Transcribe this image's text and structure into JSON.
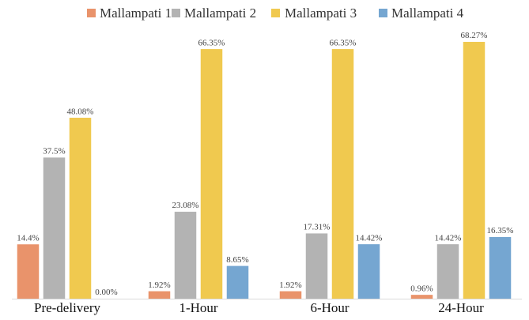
{
  "chart_data": {
    "type": "bar",
    "categories": [
      "Pre-delivery",
      "1-Hour",
      "6-Hour",
      "24-Hour"
    ],
    "series": [
      {
        "name": "Mallampati 1",
        "color": "#e9936b",
        "values": [
          14.4,
          1.92,
          1.92,
          0.96
        ],
        "labels": [
          "14.4%",
          "1.92%",
          "1.92%",
          "0.96%"
        ]
      },
      {
        "name": "Mallampati 2",
        "color": "#b3b3b3",
        "values": [
          37.5,
          23.08,
          17.31,
          14.42
        ],
        "labels": [
          "37.5%",
          "23.08%",
          "17.31%",
          "14.42%"
        ]
      },
      {
        "name": "Mallampati 3",
        "color": "#f0c94f",
        "values": [
          48.08,
          66.35,
          66.35,
          68.27
        ],
        "labels": [
          "48.08%",
          "66.35%",
          "66.35%",
          "68.27%"
        ]
      },
      {
        "name": "Mallampati 4",
        "color": "#75a6d1",
        "values": [
          0,
          8.65,
          14.42,
          16.35
        ],
        "labels": [
          "0.00%",
          "8.65%",
          "14.42%",
          "16.35%"
        ]
      }
    ],
    "title": "",
    "xlabel": "",
    "ylabel": "",
    "ylim": [
      0,
      70
    ],
    "grid": false,
    "legend_position": "top"
  }
}
